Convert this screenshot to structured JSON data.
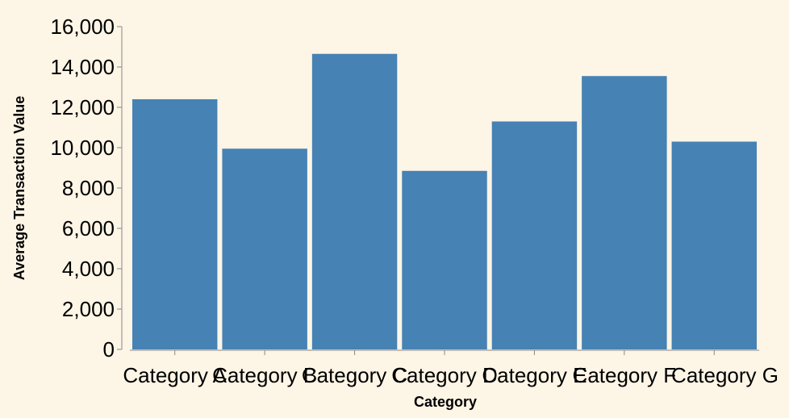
{
  "chart_data": {
    "type": "bar",
    "categories": [
      "Category A",
      "Category B",
      "Category C",
      "Category D",
      "Category E",
      "Category F",
      "Category G"
    ],
    "values": [
      12400,
      9950,
      14650,
      8850,
      11300,
      13550,
      10300
    ],
    "xlabel": "Category",
    "ylabel": "Average Transaction Value",
    "ylim": [
      0,
      16000
    ],
    "yticks": [
      0,
      2000,
      4000,
      6000,
      8000,
      10000,
      12000,
      14000,
      16000
    ],
    "grid": false,
    "colors": {
      "bar": "#4682b4",
      "axis": "#888888",
      "background": "#fdf5e6"
    }
  }
}
